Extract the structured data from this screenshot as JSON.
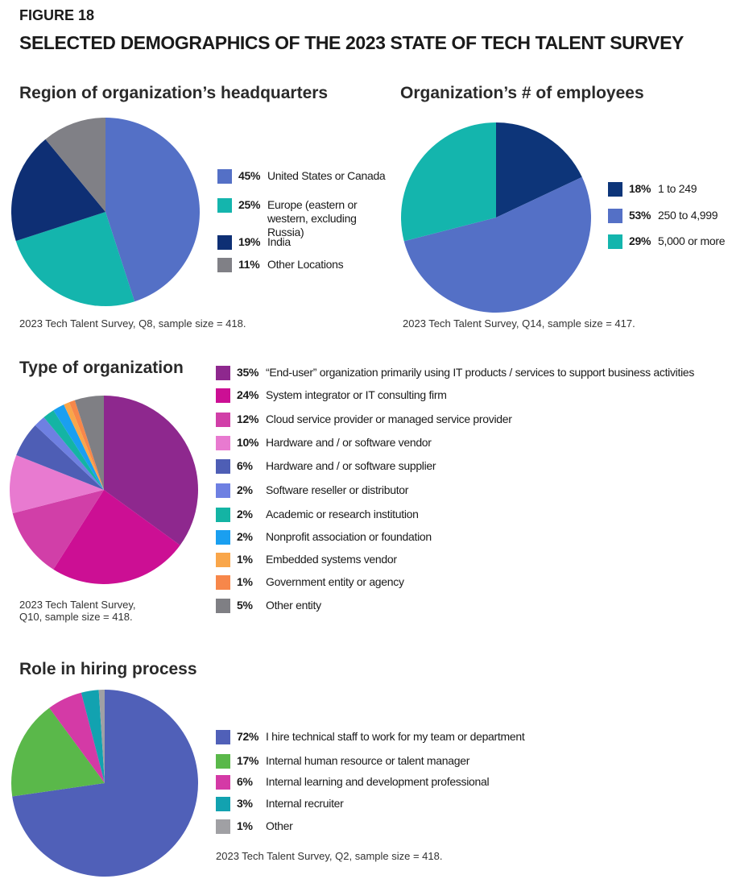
{
  "header": {
    "figure": "FIGURE 18",
    "title": "SELECTED DEMOGRAPHICS OF THE 2023 STATE OF TECH TALENT SURVEY"
  },
  "chart_data": [
    {
      "type": "pie",
      "title": "Region of organization’s headquarters",
      "categories": [
        "United States or Canada",
        "Europe (eastern or western, excluding Russia)",
        "India",
        "Other Locations"
      ],
      "values": [
        45,
        25,
        19,
        11
      ],
      "value_labels": [
        "45%",
        "25%",
        "19%",
        "11%"
      ],
      "colors": [
        "#5470c6",
        "#14b5ad",
        "#0e2f74",
        "#808086"
      ],
      "note": "2023 Tech Talent Survey, Q8, sample size = 418."
    },
    {
      "type": "pie",
      "title": "Organization’s # of employees",
      "categories": [
        "1 to 249",
        "250 to 4,999",
        "5,000 or more"
      ],
      "values": [
        18,
        53,
        29
      ],
      "value_labels": [
        "18%",
        "53%",
        "29%"
      ],
      "colors": [
        "#0d3579",
        "#5470c6",
        "#14b5ad"
      ],
      "note": "2023 Tech Talent Survey, Q14, sample size = 417."
    },
    {
      "type": "pie",
      "title": "Type of organization",
      "categories": [
        "“End-user” organization primarily using IT products / services to support business activities",
        "System integrator or IT consulting firm",
        "Cloud service provider or managed service provider",
        "Hardware and / or software vendor",
        "Hardware and / or software supplier",
        "Software reseller or distributor",
        "Academic or research institution",
        "Nonprofit association or foundation",
        "Embedded systems vendor",
        "Government entity or agency",
        "Other entity"
      ],
      "values": [
        35,
        24,
        12,
        10,
        6,
        2,
        2,
        2,
        1,
        1,
        5
      ],
      "value_labels": [
        "35%",
        "24%",
        "12%",
        "10%",
        "6%",
        "2%",
        "2%",
        "2%",
        "1%",
        "1%",
        "5%"
      ],
      "colors": [
        "#8e288e",
        "#cc0f94",
        "#d13fa8",
        "#e87ad0",
        "#4e5eb5",
        "#6e80e2",
        "#14b4a4",
        "#1a9ff0",
        "#f9a64a",
        "#f7874a",
        "#7f7f84"
      ],
      "note": "2023 Tech Talent Survey, Q10, sample size = 418."
    },
    {
      "type": "pie",
      "title": "Role in hiring process",
      "categories": [
        "I hire technical staff to work for my team or department",
        "Internal human resource or talent manager",
        "Internal learning and development professional",
        "Internal recruiter",
        "Other"
      ],
      "values": [
        72,
        17,
        6,
        3,
        1
      ],
      "value_labels": [
        "72%",
        "17%",
        "6%",
        "3%",
        "1%"
      ],
      "colors": [
        "#5060b8",
        "#5ab84a",
        "#d43aa6",
        "#12a2b0",
        "#a0a0a4"
      ],
      "note": "2023 Tech Talent Survey, Q2, sample size = 418."
    }
  ]
}
